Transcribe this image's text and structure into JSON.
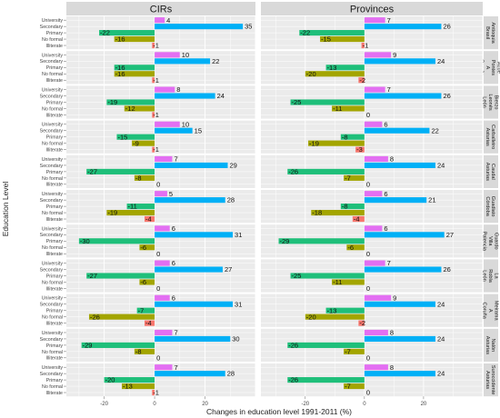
{
  "chart_data": {
    "type": "bar",
    "orientation": "horizontal",
    "facet_columns": [
      "CIRs",
      "Provinces"
    ],
    "categories": [
      "University",
      "Secondary",
      "Primary",
      "No formal",
      "Illiterate"
    ],
    "category_colors": [
      "#e36ff2",
      "#00b0f6",
      "#1fbf7a",
      "#a3a500",
      "#f8766d"
    ],
    "xlabel": "Changes in education level 1991-2011 (%)",
    "ylabel": "Education Level",
    "xlim": [
      -35,
      40
    ],
    "xticks": [
      -20,
      0,
      20
    ],
    "grid": true,
    "panels": [
      {
        "row": "Antioquia Brasil",
        "values": {
          "CIRs": [
            4,
            35,
            -22,
            -16,
            -1
          ],
          "Provinces": [
            7,
            26,
            -22,
            -15,
            -1
          ]
        }
      },
      {
        "row": "Acoe Pontes A Coruña",
        "values": {
          "CIRs": [
            10,
            22,
            -16,
            -16,
            -1
          ],
          "Provinces": [
            9,
            24,
            -13,
            -20,
            -2
          ]
        }
      },
      {
        "row": "Bierzo Leonés León",
        "values": {
          "CIRs": [
            8,
            24,
            -19,
            -12,
            -1
          ],
          "Provinces": [
            7,
            26,
            -25,
            -11,
            0
          ]
        }
      },
      {
        "row": "Carballeiro Asturias",
        "values": {
          "CIRs": [
            10,
            15,
            -15,
            -9,
            -1
          ],
          "Provinces": [
            6,
            22,
            -8,
            -19,
            -3
          ]
        }
      },
      {
        "row": "Caudal Asturias",
        "values": {
          "CIRs": [
            7,
            29,
            -27,
            -8,
            0
          ],
          "Provinces": [
            8,
            24,
            -26,
            -7,
            0
          ]
        }
      },
      {
        "row": "Guadiato Córdoba",
        "values": {
          "CIRs": [
            5,
            28,
            -11,
            -19,
            -4
          ],
          "Provinces": [
            6,
            21,
            -8,
            -18,
            -4
          ]
        }
      },
      {
        "row": "Guardo Villa Palencia",
        "values": {
          "CIRs": [
            6,
            31,
            -30,
            -6,
            0
          ],
          "Provinces": [
            6,
            27,
            -29,
            -6,
            0
          ]
        }
      },
      {
        "row": "La Robla León",
        "values": {
          "CIRs": [
            6,
            27,
            -27,
            -6,
            0
          ],
          "Provinces": [
            7,
            26,
            -25,
            -11,
            0
          ]
        }
      },
      {
        "row": "Meirama A Coruña",
        "values": {
          "CIRs": [
            6,
            31,
            -7,
            -26,
            -4
          ],
          "Provinces": [
            9,
            24,
            -13,
            -20,
            -2
          ]
        }
      },
      {
        "row": "Nalón Asturias",
        "values": {
          "CIRs": [
            7,
            30,
            -29,
            -8,
            0
          ],
          "Provinces": [
            8,
            24,
            -26,
            -7,
            0
          ]
        }
      },
      {
        "row": "Suroccidente Asturias",
        "values": {
          "CIRs": [
            7,
            28,
            -20,
            -13,
            -1
          ],
          "Provinces": [
            8,
            24,
            -26,
            -7,
            0
          ]
        }
      }
    ]
  }
}
